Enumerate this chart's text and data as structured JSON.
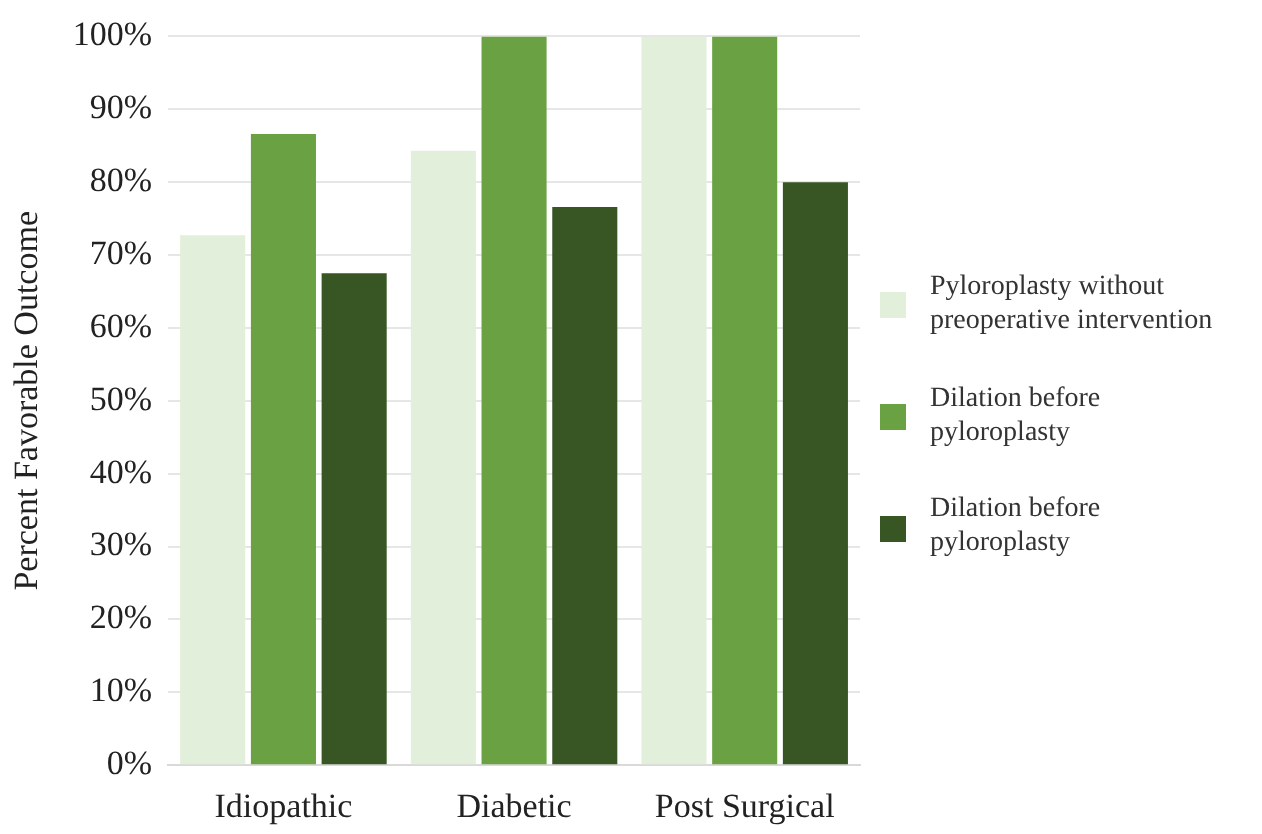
{
  "chart_data": {
    "type": "bar",
    "ylabel": "Percent Favorable Outcome",
    "categories": [
      "Idiopathic",
      "Diabetic",
      "Post Surgical"
    ],
    "series": [
      {
        "name": "Pyloroplasty without preoperative intervention",
        "color": "#e2efda",
        "values": [
          72.7,
          84.3,
          100
        ]
      },
      {
        "name": "Dilation before pyloroplasty",
        "color": "#6aa142",
        "values": [
          86.6,
          100,
          100
        ]
      },
      {
        "name": "Dilation before pyloroplasty",
        "color": "#375623",
        "values": [
          67.5,
          76.6,
          80
        ]
      }
    ],
    "ylim": [
      0,
      100
    ],
    "yticks": [
      {
        "value": 0,
        "label": "0%"
      },
      {
        "value": 10,
        "label": "10%"
      },
      {
        "value": 20,
        "label": "20%"
      },
      {
        "value": 30,
        "label": "30%"
      },
      {
        "value": 40,
        "label": "40%"
      },
      {
        "value": 50,
        "label": "50%"
      },
      {
        "value": 60,
        "label": "60%"
      },
      {
        "value": 70,
        "label": "70%"
      },
      {
        "value": 80,
        "label": "80%"
      },
      {
        "value": 90,
        "label": "90%"
      },
      {
        "value": 100,
        "label": "100%"
      }
    ],
    "grid": "y",
    "legend": "right"
  }
}
